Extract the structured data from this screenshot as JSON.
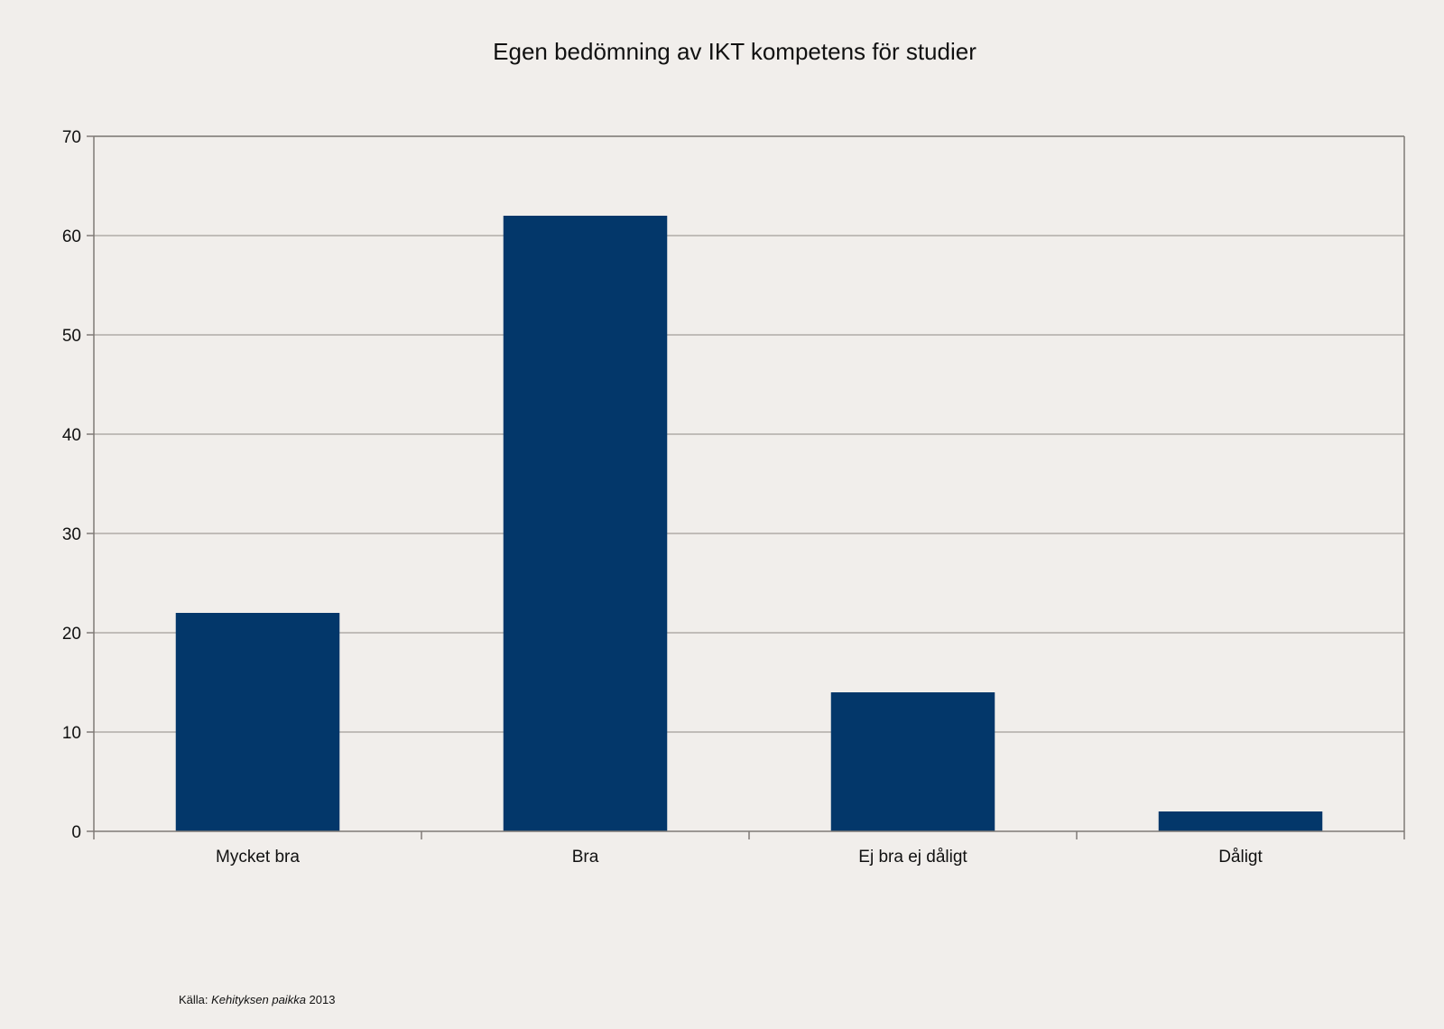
{
  "chart_data": {
    "type": "bar",
    "title": "Egen bedömning av IKT kompetens för studier",
    "xlabel": "",
    "ylabel": "",
    "categories": [
      "Mycket bra",
      "Bra",
      "Ej bra ej dåligt",
      "Dåligt"
    ],
    "series": [
      {
        "values": [
          22,
          62,
          14,
          2
        ],
        "color": "#03376a"
      }
    ],
    "ylim": [
      0,
      70
    ],
    "yticks": [
      0,
      10,
      20,
      30,
      40,
      50,
      60,
      70
    ],
    "grid": true,
    "legend": "none"
  },
  "source": {
    "prefix": "Källa: ",
    "name": "Kehityksen paikka",
    "year": " 2013"
  }
}
